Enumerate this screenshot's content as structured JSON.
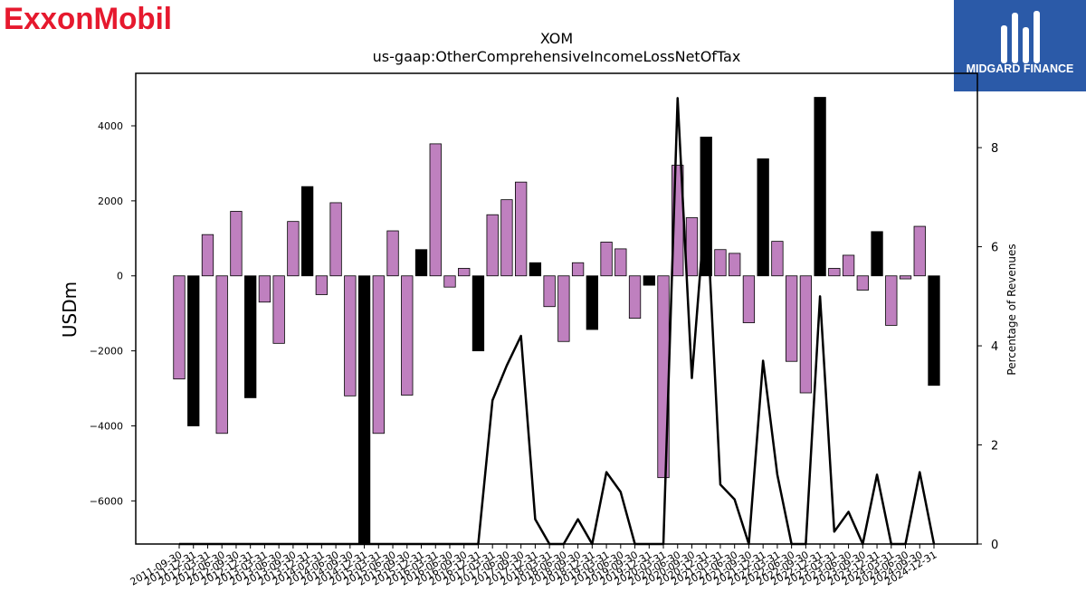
{
  "brand_left": {
    "logo_text": "ExxonMobil",
    "color": "#e6192e"
  },
  "brand_right": {
    "logo_text": "MIDGARD FINANCE",
    "bg_color": "#2b5aa8"
  },
  "chart_data": {
    "type": "bar",
    "title": "XOM",
    "subtitle": "us-gaap:OtherComprehensiveIncomeLossNetOfTax",
    "ylabel": "USDm",
    "y2label": "Percentage of Revenues",
    "ylim": [
      -7150,
      5400
    ],
    "y2lim": [
      0,
      9.5
    ],
    "yticks": [
      -6000,
      -4000,
      -2000,
      0,
      2000,
      4000
    ],
    "y2ticks": [
      0,
      2,
      4,
      6,
      8
    ],
    "colors": {
      "quarter": "#bf80bf",
      "annual": "#000000",
      "line": "#000000"
    },
    "categories": [
      "2011-09-30",
      "2011-12-31",
      "2012-03-31",
      "2012-06-30",
      "2012-09-30",
      "2012-12-31",
      "2013-03-31",
      "2013-06-30",
      "2013-09-30",
      "2013-12-31",
      "2014-03-31",
      "2014-06-30",
      "2014-09-30",
      "2014-12-31",
      "2015-03-31",
      "2015-06-30",
      "2015-09-30",
      "2015-12-31",
      "2016-03-31",
      "2016-06-30",
      "2016-09-30",
      "2016-12-31",
      "2017-03-31",
      "2017-06-30",
      "2017-09-30",
      "2017-12-31",
      "2018-03-31",
      "2018-06-30",
      "2018-09-30",
      "2018-12-31",
      "2019-03-31",
      "2019-06-30",
      "2019-09-30",
      "2019-12-31",
      "2020-03-31",
      "2020-06-30",
      "2020-09-30",
      "2020-12-31",
      "2021-03-31",
      "2021-06-30",
      "2021-09-30",
      "2021-12-31",
      "2022-03-31",
      "2022-06-30",
      "2022-09-30",
      "2022-12-31",
      "2023-03-31",
      "2023-06-30",
      "2023-09-30",
      "2023-12-31",
      "2024-03-31",
      "2024-06-30",
      "2024-09-30",
      "2024-12-31"
    ],
    "values": [
      -2750,
      -4000,
      1100,
      -4200,
      1720,
      -3250,
      -700,
      -1800,
      1450,
      2380,
      -500,
      1950,
      -3200,
      -7150,
      -4200,
      1200,
      -3180,
      700,
      3520,
      -300,
      200,
      -2000,
      1630,
      2030,
      2500,
      350,
      -820,
      -1750,
      350,
      -1430,
      900,
      720,
      -1130,
      -250,
      -5380,
      2950,
      1550,
      3700,
      700,
      600,
      -1250,
      3120,
      920,
      -2280,
      -3120,
      4760,
      200,
      550,
      -380,
      1180,
      -1320,
      -80,
      1320,
      -2920
    ],
    "annual": [
      false,
      true,
      false,
      false,
      false,
      true,
      false,
      false,
      false,
      true,
      false,
      false,
      false,
      true,
      false,
      false,
      false,
      true,
      false,
      false,
      false,
      true,
      false,
      false,
      false,
      true,
      false,
      false,
      false,
      true,
      false,
      false,
      false,
      true,
      false,
      false,
      false,
      true,
      false,
      false,
      false,
      true,
      false,
      false,
      false,
      true,
      false,
      false,
      false,
      true,
      false,
      false,
      false,
      true
    ],
    "line_values": [
      0,
      0,
      0,
      0,
      0,
      0,
      0,
      0,
      0,
      0,
      0,
      0,
      0,
      0,
      0,
      0,
      0,
      0,
      0,
      0,
      0,
      0,
      2.9,
      3.6,
      4.2,
      0.5,
      0,
      0,
      0.5,
      0,
      1.45,
      1.05,
      0,
      0,
      0,
      9.0,
      3.35,
      7.0,
      1.2,
      0.9,
      0,
      3.7,
      1.4,
      0,
      0,
      5.0,
      0.25,
      0.65,
      0,
      1.4,
      0,
      0,
      1.45,
      0
    ]
  }
}
